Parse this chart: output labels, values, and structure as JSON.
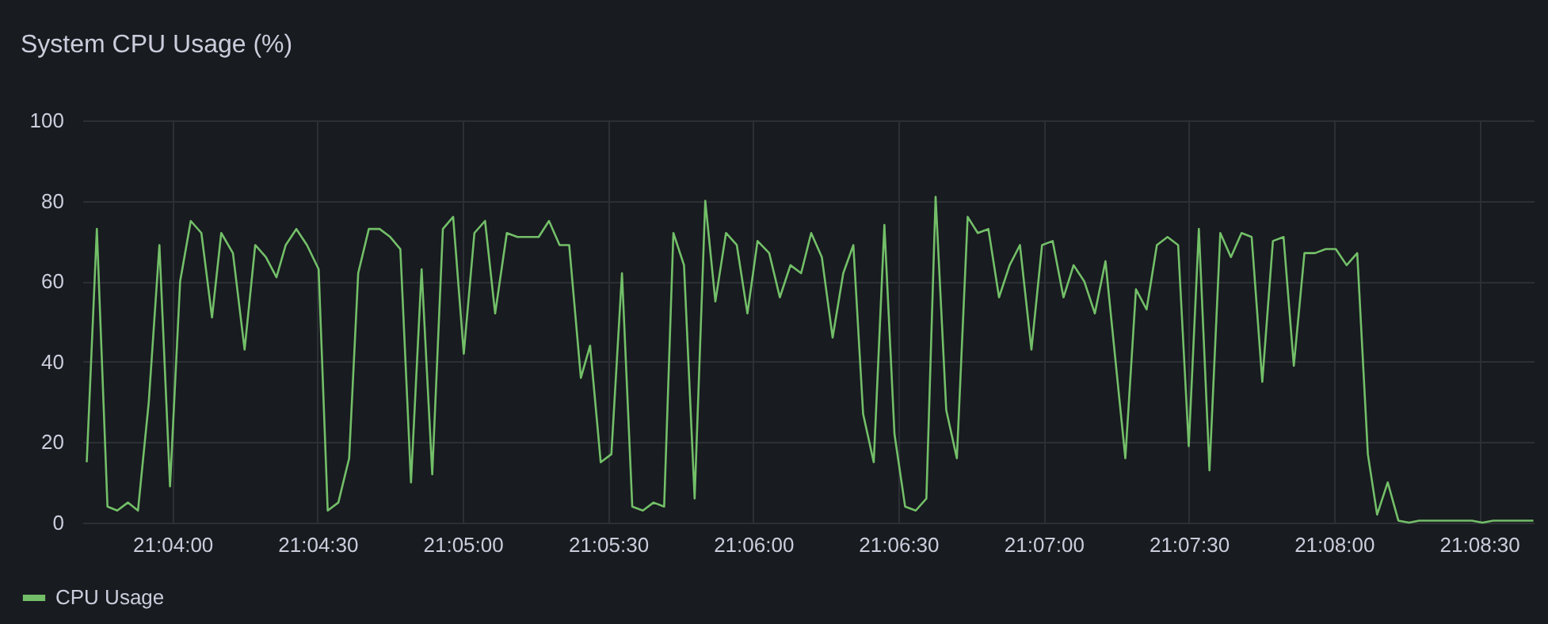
{
  "chart_data": {
    "type": "line",
    "title": "System CPU Usage (%)",
    "legend": "bottom left",
    "grid": true,
    "xlim": [
      21.0615,
      21.1448
    ],
    "xticks": [
      {
        "value": 21.06667,
        "label": "21:04:00"
      },
      {
        "value": 21.075,
        "label": "21:04:30"
      },
      {
        "value": 21.08333,
        "label": "21:05:00"
      },
      {
        "value": 21.09167,
        "label": "21:05:30"
      },
      {
        "value": 21.1,
        "label": "21:06:00"
      },
      {
        "value": 21.10833,
        "label": "21:06:30"
      },
      {
        "value": 21.11667,
        "label": "21:07:00"
      },
      {
        "value": 21.125,
        "label": "21:07:30"
      },
      {
        "value": 21.13333,
        "label": "21:08:00"
      },
      {
        "value": 21.14167,
        "label": "21:08:30"
      }
    ],
    "ylim": [
      0,
      100
    ],
    "yticks": [
      0,
      20,
      40,
      60,
      80,
      100
    ],
    "x": [
      21.06175,
      21.06233,
      21.06294,
      21.0635,
      21.06411,
      21.06469,
      21.06531,
      21.06592,
      21.06653,
      21.06711,
      21.06772,
      21.06833,
      21.06894,
      21.06947,
      21.07014,
      21.07081,
      21.07142,
      21.07203,
      21.07264,
      21.07317,
      21.07378,
      21.07439,
      21.07506,
      21.07558,
      21.07619,
      21.07681,
      21.07733,
      21.07794,
      21.07856,
      21.07917,
      21.07975,
      21.08036,
      21.08097,
      21.08158,
      21.08219,
      21.08278,
      21.08339,
      21.084,
      21.08461,
      21.08519,
      21.08586,
      21.08647,
      21.08708,
      21.08769,
      21.08828,
      21.08889,
      21.08944,
      21.09011,
      21.09064,
      21.09125,
      21.09186,
      21.09247,
      21.09306,
      21.09367,
      21.09428,
      21.09489,
      21.09542,
      21.09603,
      21.09664,
      21.09725,
      21.09783,
      21.09844,
      21.09906,
      21.09967,
      21.10025,
      21.10092,
      21.10153,
      21.10214,
      21.10275,
      21.10333,
      21.10394,
      21.10456,
      21.10517,
      21.10575,
      21.10631,
      21.10692,
      21.10753,
      21.10811,
      21.10872,
      21.10933,
      21.10994,
      21.11047,
      21.11108,
      21.11169,
      21.11231,
      21.11289,
      21.1135,
      21.11411,
      21.11472,
      21.11531,
      21.11597,
      21.11658,
      21.11719,
      21.11781,
      21.11839,
      21.119,
      21.11961,
      21.12022,
      21.12136,
      21.12197,
      21.12258,
      21.12317,
      21.12378,
      21.12439,
      21.125,
      21.12558,
      21.12619,
      21.12681,
      21.12742,
      21.12803,
      21.12861,
      21.12922,
      21.12983,
      21.13044,
      21.13103,
      21.13164,
      21.13225,
      21.13286,
      21.13344,
      21.13406,
      21.13467,
      21.13528,
      21.13581,
      21.13642,
      21.13703,
      21.13764,
      21.13822,
      21.13883,
      21.13944,
      21.14006,
      21.14067,
      21.14125,
      21.14186,
      21.14247,
      21.14306,
      21.14367,
      21.14428,
      21.14478
    ],
    "series": [
      {
        "name": "CPU Usage",
        "color": "#73bf69",
        "values": [
          15,
          73,
          4,
          3,
          5,
          3,
          30,
          69,
          9,
          60,
          75,
          72,
          51,
          72,
          67,
          43,
          69,
          66,
          61,
          69,
          73,
          69,
          63,
          3,
          5,
          16,
          62,
          73,
          73,
          71,
          68,
          10,
          63,
          12,
          73,
          76,
          42,
          72,
          75,
          52,
          72,
          71,
          71,
          71,
          75,
          69,
          69,
          36,
          44,
          15,
          17,
          62,
          4,
          3,
          5,
          4,
          72,
          64,
          6,
          80,
          55,
          72,
          69,
          52,
          70,
          67,
          56,
          64,
          62,
          72,
          66,
          46,
          62,
          69,
          27,
          15,
          74,
          22,
          4,
          3,
          6,
          81,
          28,
          16,
          76,
          72,
          73,
          56,
          64,
          69,
          43,
          69,
          70,
          56,
          64,
          60,
          52,
          65,
          16,
          58,
          53,
          69,
          71,
          69,
          19,
          73,
          13,
          72,
          66,
          72,
          71,
          35,
          70,
          71,
          39,
          67,
          67,
          68,
          68,
          64,
          67,
          17,
          2,
          10,
          0.5,
          0,
          0.5,
          0.5,
          0.5,
          0.5,
          0.5,
          0.5,
          0,
          0.5,
          0.5,
          0.5,
          0.5,
          0.5
        ]
      }
    ]
  }
}
